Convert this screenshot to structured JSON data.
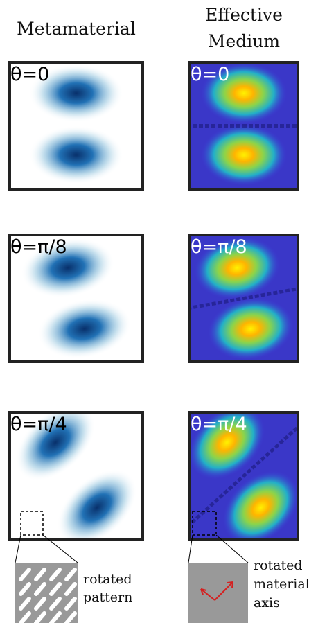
{
  "headers": {
    "metamaterial": "Metamaterial",
    "effective_medium": [
      "Effective",
      "Medium"
    ]
  },
  "rows": [
    {
      "left": "θ=0",
      "right": "θ=0"
    },
    {
      "left": "θ=π/8",
      "right": "θ=π/8"
    },
    {
      "left": "θ=π/4",
      "right": "θ=π/4"
    }
  ],
  "insets": {
    "left": [
      "rotated",
      "pattern"
    ],
    "right": [
      "rotated",
      "material",
      "axis"
    ]
  }
}
